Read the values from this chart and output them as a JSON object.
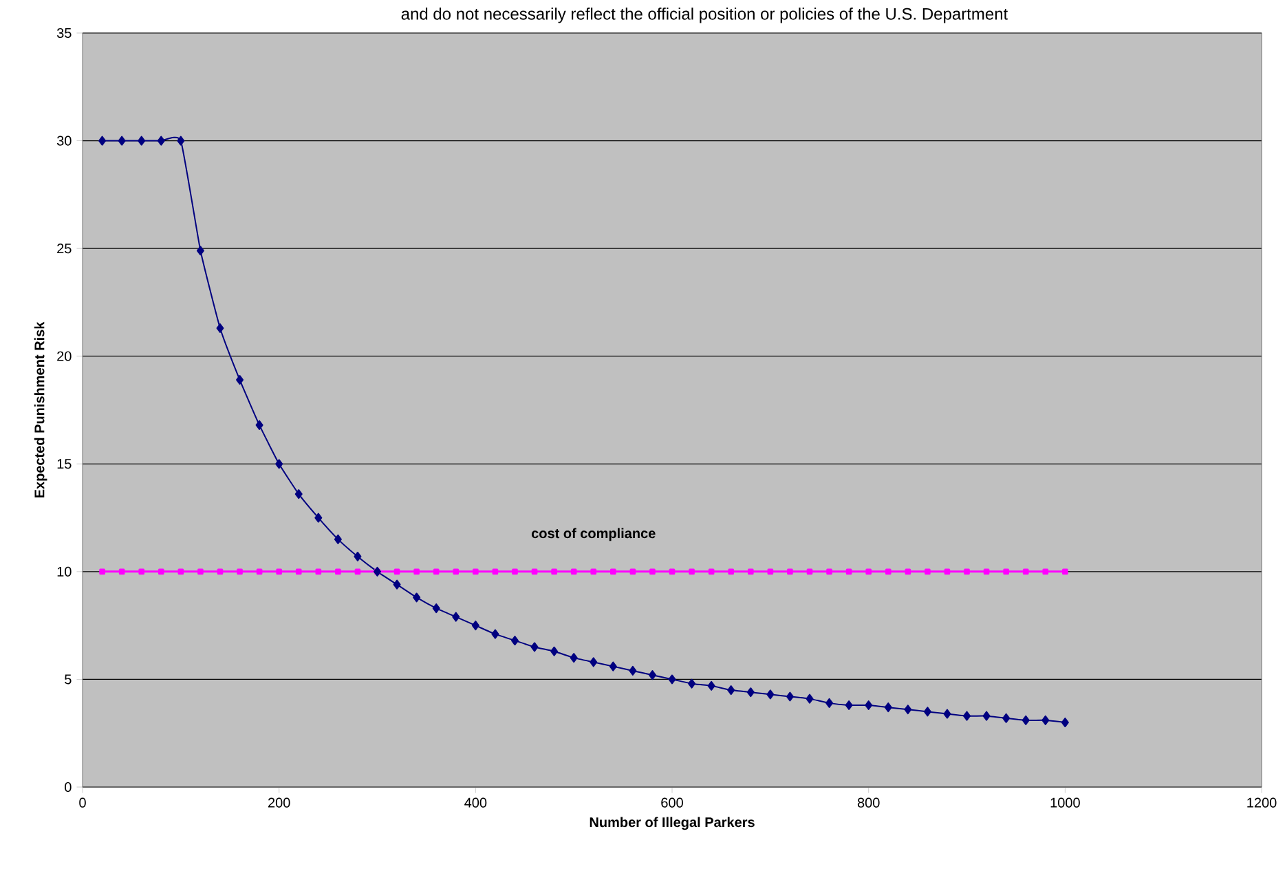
{
  "chart_data": {
    "type": "line",
    "xlabel": "Number of Illegal Parkers",
    "ylabel": "Expected Punishment Risk",
    "annotations": [
      "and do not necessarily reflect the official position or policies of the U.S. Department"
    ],
    "xlim": [
      0,
      1200
    ],
    "xticks": [
      0,
      200,
      400,
      600,
      800,
      1000,
      1200
    ],
    "ylim": [
      0,
      35
    ],
    "yticks": [
      0,
      5,
      10,
      15,
      20,
      25,
      30,
      35
    ],
    "grid": "y",
    "series": [
      {
        "color": "#000080",
        "marker": "diamond",
        "x": [
          20,
          40,
          60,
          80,
          100,
          120,
          140,
          160,
          180,
          200,
          220,
          240,
          260,
          280,
          300,
          320,
          340,
          360,
          380,
          400,
          420,
          440,
          460,
          480,
          500,
          520,
          540,
          560,
          580,
          600,
          620,
          640,
          660,
          680,
          700,
          720,
          740,
          760,
          780,
          800,
          820,
          840,
          860,
          880,
          900,
          920,
          940,
          960,
          980,
          1000
        ],
        "values": [
          30,
          30,
          30,
          30,
          30,
          24.9,
          21.3,
          18.9,
          16.8,
          15.0,
          13.6,
          12.5,
          11.5,
          10.7,
          10.0,
          9.4,
          8.8,
          8.3,
          7.9,
          7.5,
          7.1,
          6.8,
          6.5,
          6.3,
          6.0,
          5.8,
          5.6,
          5.4,
          5.2,
          5.0,
          4.8,
          4.7,
          4.5,
          4.4,
          4.3,
          4.2,
          4.1,
          3.9,
          3.8,
          3.8,
          3.7,
          3.6,
          3.5,
          3.4,
          3.3,
          3.3,
          3.2,
          3.1,
          3.1,
          3.0
        ]
      },
      {
        "name": "cost of compliance",
        "color": "#ff00ff",
        "marker": "square",
        "x": [
          20,
          40,
          60,
          80,
          100,
          120,
          140,
          160,
          180,
          200,
          220,
          240,
          260,
          280,
          300,
          320,
          340,
          360,
          380,
          400,
          420,
          440,
          460,
          480,
          500,
          520,
          540,
          560,
          580,
          600,
          620,
          640,
          660,
          680,
          700,
          720,
          740,
          760,
          780,
          800,
          820,
          840,
          860,
          880,
          900,
          920,
          940,
          960,
          980,
          1000
        ],
        "values": [
          10,
          10,
          10,
          10,
          10,
          10,
          10,
          10,
          10,
          10,
          10,
          10,
          10,
          10,
          10,
          10,
          10,
          10,
          10,
          10,
          10,
          10,
          10,
          10,
          10,
          10,
          10,
          10,
          10,
          10,
          10,
          10,
          10,
          10,
          10,
          10,
          10,
          10,
          10,
          10,
          10,
          10,
          10,
          10,
          10,
          10,
          10,
          10,
          10,
          10
        ]
      }
    ]
  }
}
